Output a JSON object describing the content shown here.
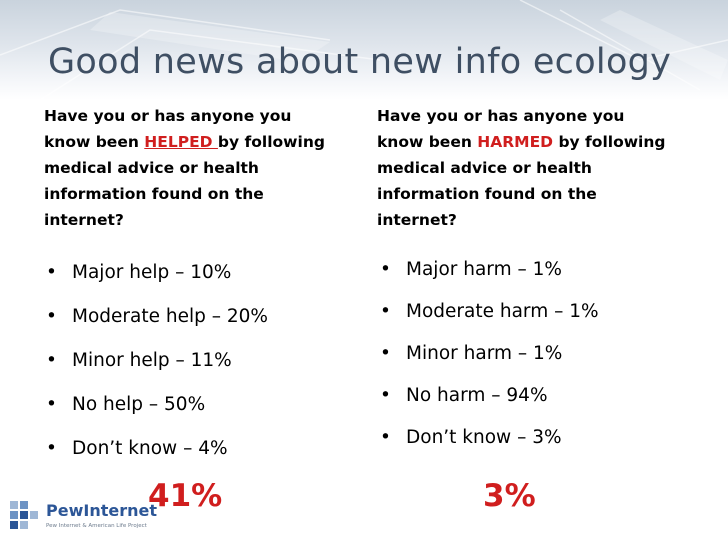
{
  "slide": {
    "title": "Good news about new info ecology"
  },
  "left": {
    "question_part1": "Have you or has anyone you know been ",
    "question_highlight": "HELPED ",
    "question_part2": "by following medical advice or health information found on the internet?",
    "bullets": [
      "Major help – 10%",
      "Moderate help – 20%",
      "Minor help – 11%",
      "No help – 50%",
      "Don’t know – 4%"
    ],
    "total": "41%"
  },
  "right": {
    "question_part1": "Have you or has anyone you know been ",
    "question_highlight": "HARMED",
    "question_part2": " by following medical advice or health information found on the internet?",
    "bullets": [
      "Major harm – 1%",
      "Moderate harm – 1%",
      "Minor harm – 1%",
      "No harm – 94%",
      "Don’t know – 3%"
    ],
    "total": "3%"
  },
  "logo": {
    "name": "PewInternet",
    "tagline": "Pew Internet & American Life Project"
  },
  "colors": {
    "title": "#3f4f63",
    "highlight": "#d01e1e",
    "logo": "#2c5697"
  }
}
